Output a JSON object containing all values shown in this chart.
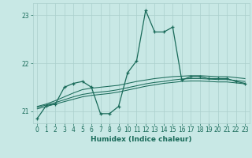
{
  "xlabel": "Humidex (Indice chaleur)",
  "bg_color": "#c8e8e5",
  "line_color": "#1a6b5a",
  "grid_color": "#aacfcc",
  "xlim": [
    -0.5,
    23.5
  ],
  "ylim": [
    20.75,
    23.25
  ],
  "yticks": [
    21,
    22,
    23
  ],
  "xticks": [
    0,
    1,
    2,
    3,
    4,
    5,
    6,
    7,
    8,
    9,
    10,
    11,
    12,
    13,
    14,
    15,
    16,
    17,
    18,
    19,
    20,
    21,
    22,
    23
  ],
  "series": {
    "line1_x": [
      0,
      1,
      2,
      3,
      4,
      5,
      6,
      7,
      8,
      9,
      10,
      11,
      12,
      13,
      14,
      15,
      16,
      17,
      18,
      19,
      20,
      21,
      22,
      23
    ],
    "line1_y": [
      20.85,
      21.12,
      21.15,
      21.5,
      21.58,
      21.62,
      21.5,
      20.95,
      20.95,
      21.1,
      21.8,
      22.05,
      23.1,
      22.65,
      22.65,
      22.75,
      21.65,
      21.72,
      21.72,
      21.68,
      21.68,
      21.68,
      21.62,
      21.58
    ],
    "line2_x": [
      0,
      1,
      2,
      3,
      4,
      5,
      6,
      7,
      8,
      9,
      10,
      11,
      12,
      13,
      14,
      15,
      16,
      17,
      18,
      19,
      20,
      21,
      22,
      23
    ],
    "line2_y": [
      21.1,
      21.15,
      21.22,
      21.3,
      21.38,
      21.45,
      21.48,
      21.5,
      21.52,
      21.54,
      21.58,
      21.62,
      21.65,
      21.68,
      21.7,
      21.72,
      21.73,
      21.74,
      21.74,
      21.73,
      21.72,
      21.72,
      21.7,
      21.68
    ],
    "line3_x": [
      0,
      1,
      2,
      3,
      4,
      5,
      6,
      7,
      8,
      9,
      10,
      11,
      12,
      13,
      14,
      15,
      16,
      17,
      18,
      19,
      20,
      21,
      22,
      23
    ],
    "line3_y": [
      21.05,
      21.1,
      21.15,
      21.2,
      21.25,
      21.3,
      21.33,
      21.35,
      21.37,
      21.4,
      21.44,
      21.48,
      21.52,
      21.55,
      21.58,
      21.6,
      21.62,
      21.63,
      21.63,
      21.62,
      21.61,
      21.61,
      21.59,
      21.57
    ],
    "line4_x": [
      0,
      1,
      2,
      3,
      4,
      5,
      6,
      7,
      8,
      9,
      10,
      11,
      12,
      13,
      14,
      15,
      16,
      17,
      18,
      19,
      20,
      21,
      22,
      23
    ],
    "line4_y": [
      21.08,
      21.13,
      21.18,
      21.24,
      21.3,
      21.35,
      21.38,
      21.4,
      21.42,
      21.45,
      21.49,
      21.53,
      21.57,
      21.6,
      21.62,
      21.65,
      21.67,
      21.68,
      21.68,
      21.67,
      21.66,
      21.66,
      21.64,
      21.62
    ]
  }
}
